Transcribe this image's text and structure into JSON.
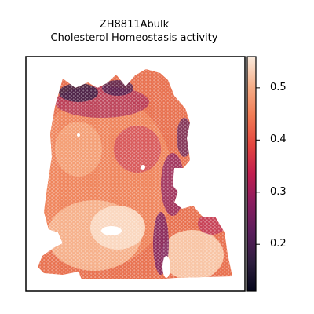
{
  "figure": {
    "title_line1": "ZH8811Abulk",
    "title_line2": "Cholesterol Homeostasis activity"
  },
  "chart_data": {
    "type": "heatmap",
    "subtype": "spatial-hexbin",
    "title": "ZH8811Abulk\nCholesterol Homeostasis activity",
    "xlabel": "",
    "ylabel": "",
    "colormap": "rocket",
    "colorbar": {
      "range": [
        0.11,
        0.56
      ],
      "ticks": [
        0.2,
        0.3,
        0.4,
        0.5
      ],
      "tick_labels": [
        "0.2",
        "0.3",
        "0.4",
        "0.5"
      ]
    },
    "axes_ticks_visible": false,
    "grid": false
  }
}
